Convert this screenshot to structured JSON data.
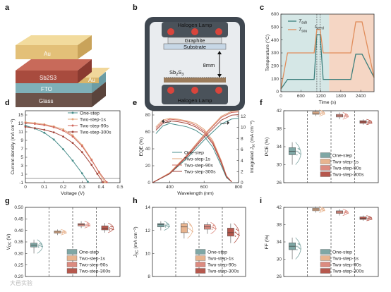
{
  "panels": [
    "a",
    "b",
    "c",
    "d",
    "e",
    "f",
    "g",
    "h",
    "i"
  ],
  "colors": {
    "one": "#4a8f8c",
    "s1": "#e2a47a",
    "s90": "#d1685d",
    "s300": "#a3463c",
    "box_one": "#7fa7a5",
    "box_s1": "#e8b48f",
    "box_s90": "#dc8b80",
    "box_s300": "#b6584d",
    "teal_bg": "#d5e7e6",
    "peach_bg": "#f5d6c4"
  },
  "legend": [
    "One-step",
    "Two-step-1s",
    "Two-step-90s",
    "Two-step-300s"
  ],
  "a": {
    "layers": [
      "Au",
      "Sb2S3",
      "FTO",
      "Glass",
      "Au"
    ]
  },
  "b": {
    "top_lamp": "Halogen Lamp",
    "graphite": "Graphite",
    "substrate": "Substrate",
    "gap": "8mm",
    "source": "Sb2S3",
    "bottom_lamp": "Halogen Lamp"
  },
  "chart_data": [
    {
      "panel": "c",
      "type": "line",
      "xlabel": "Time (s)",
      "ylabel": "Temperature (°C)",
      "xlim": [
        0,
        2800
      ],
      "ylim": [
        0,
        600
      ],
      "xticks": [
        0,
        600,
        1200,
        1800,
        2400
      ],
      "yticks": [
        0,
        100,
        200,
        300,
        400,
        500,
        600
      ],
      "series": [
        {
          "name": "T_sub",
          "x": [
            0,
            200,
            1000,
            1080,
            1180,
            1270,
            1520,
            2100,
            2250,
            2440,
            2800
          ],
          "y": [
            20,
            95,
            95,
            440,
            440,
            95,
            95,
            95,
            290,
            290,
            110
          ]
        },
        {
          "name": "T_sou",
          "x": [
            0,
            200,
            1000,
            1080,
            1180,
            1270,
            1520,
            1700,
            2100,
            2250,
            2440,
            2800
          ],
          "y": [
            20,
            300,
            300,
            480,
            480,
            300,
            300,
            300,
            300,
            540,
            540,
            110
          ]
        }
      ],
      "annotations": [
        "t_seed"
      ],
      "dashed_x": [
        1080,
        1180
      ],
      "shaded": [
        [
          0,
          1450,
          "teal"
        ],
        [
          1450,
          2800,
          "peach"
        ]
      ]
    },
    {
      "panel": "d",
      "type": "line",
      "xlabel": "Voltage (V)",
      "ylabel": "Current density (mA cm⁻²)",
      "xlim": [
        0,
        0.5
      ],
      "ylim": [
        -1,
        16
      ],
      "xticks": [
        0,
        0.1,
        0.2,
        0.3,
        0.4,
        0.5
      ],
      "yticks": [
        -1,
        1,
        3,
        5,
        7,
        9,
        11,
        13,
        15
      ],
      "series": [
        {
          "name": "One-step",
          "x": [
            0,
            0.05,
            0.1,
            0.15,
            0.2,
            0.25,
            0.3,
            0.33
          ],
          "y": [
            12.5,
            11.8,
            10.8,
            9.2,
            6.9,
            4.2,
            1.2,
            -0.8
          ]
        },
        {
          "name": "Two-step-1s",
          "x": [
            0,
            0.05,
            0.1,
            0.15,
            0.2,
            0.25,
            0.3,
            0.35,
            0.39,
            0.42
          ],
          "y": [
            13.3,
            13.1,
            12.8,
            12.3,
            11.6,
            10.2,
            7.9,
            4.5,
            1.3,
            -0.9
          ]
        },
        {
          "name": "Two-step-90s",
          "x": [
            0,
            0.05,
            0.1,
            0.15,
            0.2,
            0.25,
            0.3,
            0.35,
            0.39,
            0.43
          ],
          "y": [
            13.1,
            12.9,
            12.6,
            12.1,
            11.3,
            9.9,
            7.6,
            4.3,
            1.5,
            -0.9
          ]
        },
        {
          "name": "Two-step-300s",
          "x": [
            0,
            0.05,
            0.1,
            0.15,
            0.2,
            0.25,
            0.3,
            0.35,
            0.38,
            0.41
          ],
          "y": [
            12.2,
            11.9,
            11.5,
            10.9,
            9.9,
            8.4,
            6.2,
            3.2,
            1.1,
            -0.9
          ]
        }
      ]
    },
    {
      "panel": "e",
      "type": "line",
      "xlabel": "Wavelength (nm)",
      "ylabel": "EQE (%)",
      "ylabel_right": "Integrated J_sc (mA cm⁻²)",
      "xlim": [
        300,
        800
      ],
      "ylim": [
        0,
        85
      ],
      "ylim_right": [
        0,
        13
      ],
      "xticks": [
        400,
        600,
        800
      ],
      "yticks": [
        0,
        20,
        40,
        60,
        80
      ],
      "yticks_right": [
        0,
        2,
        4,
        6,
        8,
        10,
        12
      ],
      "series": [
        {
          "name": "One-step",
          "x": [
            320,
            360,
            400,
            450,
            500,
            550,
            600,
            650,
            700,
            730,
            760
          ],
          "y": [
            58,
            67,
            70,
            68,
            66,
            62,
            55,
            42,
            20,
            6,
            1
          ]
        },
        {
          "name": "Two-step-1s",
          "x": [
            320,
            360,
            400,
            450,
            500,
            550,
            600,
            650,
            700,
            730,
            760
          ],
          "y": [
            66,
            74,
            76,
            75,
            73,
            70,
            63,
            50,
            26,
            8,
            1
          ]
        },
        {
          "name": "Two-step-90s",
          "x": [
            320,
            360,
            400,
            450,
            500,
            550,
            600,
            650,
            700,
            730,
            760
          ],
          "y": [
            64,
            72,
            75,
            74,
            72,
            68,
            61,
            48,
            25,
            8,
            1
          ]
        },
        {
          "name": "Two-step-300s",
          "x": [
            320,
            360,
            400,
            450,
            500,
            550,
            600,
            650,
            700,
            730,
            760
          ],
          "y": [
            62,
            70,
            73,
            72,
            70,
            66,
            59,
            46,
            23,
            7,
            1
          ]
        }
      ],
      "integrated": [
        {
          "name": "One-step",
          "x": [
            300,
            400,
            500,
            600,
            700,
            760,
            800
          ],
          "y": [
            0,
            1.6,
            4.4,
            7.7,
            10.6,
            11.5,
            11.6
          ]
        },
        {
          "name": "Two-step-1s",
          "x": [
            300,
            400,
            500,
            600,
            700,
            760,
            800
          ],
          "y": [
            0,
            1.8,
            5.0,
            8.7,
            12.0,
            12.9,
            13.0
          ]
        },
        {
          "name": "Two-step-90s",
          "x": [
            300,
            400,
            500,
            600,
            700,
            760,
            800
          ],
          "y": [
            0,
            1.7,
            4.9,
            8.5,
            11.8,
            12.7,
            12.8
          ]
        },
        {
          "name": "Two-step-300s",
          "x": [
            300,
            400,
            500,
            600,
            700,
            760,
            800
          ],
          "y": [
            0,
            1.6,
            4.7,
            8.2,
            11.3,
            12.2,
            12.3
          ]
        }
      ]
    },
    {
      "panel": "f",
      "type": "box",
      "ylabel": "PCE (%)",
      "ylim": [
        26,
        42
      ],
      "yticks": [
        26,
        30,
        34,
        38,
        42
      ],
      "boxes": [
        {
          "name": "One-step",
          "q1": 32.2,
          "med": 33.0,
          "q3": 33.8,
          "min": 30.0,
          "max": 35.0
        },
        {
          "name": "Two-step-1s",
          "q1": 41.2,
          "med": 41.5,
          "q3": 41.8,
          "min": 40.8,
          "max": 42.2
        },
        {
          "name": "Two-step-90s",
          "q1": 40.6,
          "med": 40.9,
          "q3": 41.2,
          "min": 40.1,
          "max": 41.6
        },
        {
          "name": "Two-step-300s",
          "q1": 39.2,
          "med": 39.5,
          "q3": 39.8,
          "min": 38.9,
          "max": 40.1
        }
      ]
    },
    {
      "panel": "g",
      "type": "box",
      "ylabel": "V_OC (V)",
      "ylim": [
        0.2,
        0.5
      ],
      "yticks": [
        0.2,
        0.25,
        0.3,
        0.35,
        0.4,
        0.45,
        0.5
      ],
      "boxes": [
        {
          "name": "One-step",
          "q1": 0.328,
          "med": 0.336,
          "q3": 0.345,
          "min": 0.3,
          "max": 0.36
        },
        {
          "name": "Two-step-1s",
          "q1": 0.388,
          "med": 0.393,
          "q3": 0.398,
          "min": 0.38,
          "max": 0.404
        },
        {
          "name": "Two-step-90s",
          "q1": 0.419,
          "med": 0.425,
          "q3": 0.43,
          "min": 0.41,
          "max": 0.44
        },
        {
          "name": "Two-step-300s",
          "q1": 0.402,
          "med": 0.41,
          "q3": 0.42,
          "min": 0.39,
          "max": 0.432
        }
      ]
    },
    {
      "panel": "h",
      "type": "box",
      "ylabel": "J_SC (mA cm⁻²)",
      "ylim": [
        8,
        14
      ],
      "yticks": [
        8,
        10,
        12,
        14
      ],
      "boxes": [
        {
          "name": "One-step",
          "q1": 12.3,
          "med": 12.5,
          "q3": 12.6,
          "min": 12.0,
          "max": 12.8
        },
        {
          "name": "Two-step-1s",
          "q1": 11.8,
          "med": 12.3,
          "q3": 12.6,
          "min": 11.3,
          "max": 12.8
        },
        {
          "name": "Two-step-90s",
          "q1": 12.1,
          "med": 12.3,
          "q3": 12.5,
          "min": 11.7,
          "max": 12.7
        },
        {
          "name": "Two-step-300s",
          "q1": 11.5,
          "med": 11.8,
          "q3": 12.2,
          "min": 10.9,
          "max": 12.6
        }
      ]
    },
    {
      "panel": "i",
      "type": "box",
      "ylabel": "FF (%)",
      "ylim": [
        26,
        42
      ],
      "yticks": [
        26,
        30,
        34,
        38,
        42
      ],
      "boxes": [
        {
          "name": "One-step",
          "q1": 32.2,
          "med": 33.0,
          "q3": 33.8,
          "min": 30.0,
          "max": 35.0
        },
        {
          "name": "Two-step-1s",
          "q1": 41.2,
          "med": 41.5,
          "q3": 41.8,
          "min": 40.8,
          "max": 42.2
        },
        {
          "name": "Two-step-90s",
          "q1": 40.6,
          "med": 40.9,
          "q3": 41.2,
          "min": 40.1,
          "max": 41.6
        },
        {
          "name": "Two-step-300s",
          "q1": 39.2,
          "med": 39.5,
          "q3": 39.8,
          "min": 38.9,
          "max": 40.1
        }
      ]
    }
  ],
  "watermark": "大邑实验"
}
